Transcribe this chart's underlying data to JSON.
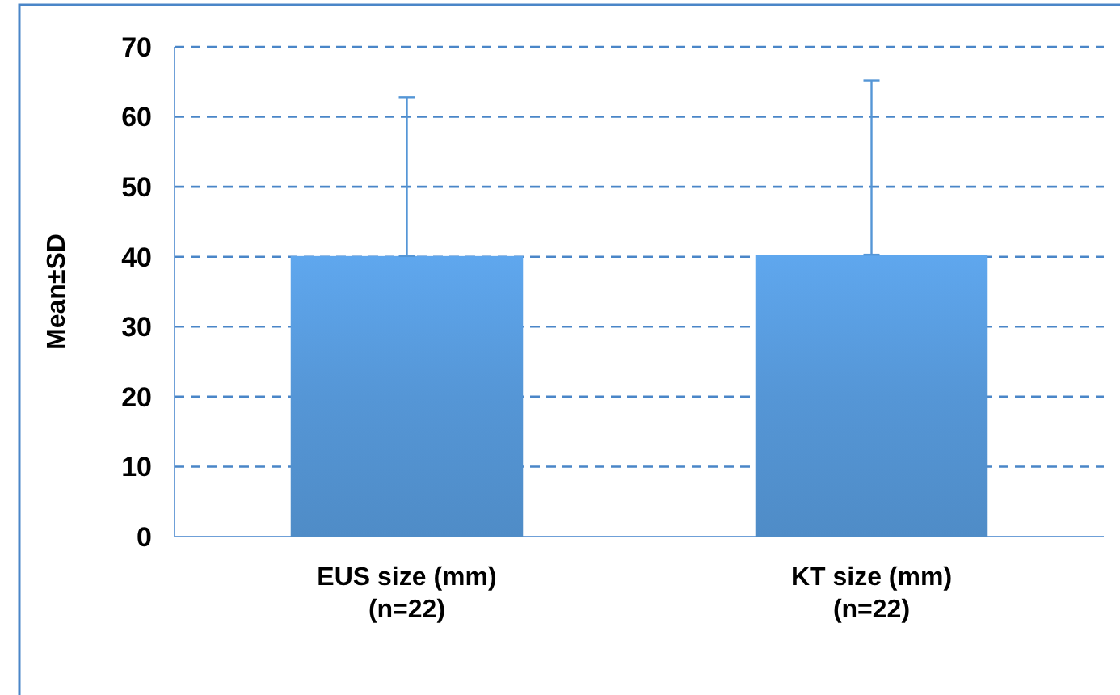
{
  "chart_data": {
    "type": "bar",
    "ylabel": "Mean±SD",
    "categories": [
      "EUS size (mm)\n(n=22)",
      "KT size (mm)\n(n=22)"
    ],
    "values": [
      40.1,
      40.3
    ],
    "color": "#5596d6",
    "errors": [
      [
        40.1,
        62.8
      ],
      [
        40.3,
        65.2
      ]
    ],
    "ylim": [
      0,
      70
    ],
    "yticks": [
      0,
      10,
      20,
      30,
      40,
      50,
      60,
      70
    ],
    "grid": "y"
  }
}
